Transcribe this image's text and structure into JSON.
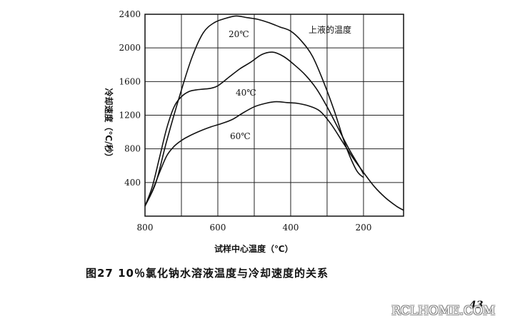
{
  "chart_data": {
    "type": "line",
    "title": "",
    "xlabel": "试样中心温度（℃）",
    "ylabel": "冷却速度（℃/秒）",
    "x_axis_reversed": true,
    "xlim": [
      800,
      90
    ],
    "ylim": [
      0,
      2400
    ],
    "x_ticks": [
      "800",
      "600",
      "400",
      "200"
    ],
    "y_ticks": [
      "400",
      "800",
      "1200",
      "1600",
      "2000",
      "2400"
    ],
    "grid": true,
    "legend": "none",
    "series": [
      {
        "name": "20℃",
        "color": "#111111",
        "x": [
          800,
          770,
          740,
          700,
          670,
          640,
          610,
          580,
          550,
          520,
          490,
          460,
          430,
          400,
          370,
          340,
          310,
          280,
          250,
          220,
          200
        ],
        "y": [
          120,
          400,
          900,
          1500,
          1900,
          2180,
          2300,
          2350,
          2380,
          2360,
          2340,
          2300,
          2250,
          2200,
          2080,
          1900,
          1600,
          1250,
          850,
          550,
          460
        ]
      },
      {
        "name": "40℃",
        "color": "#111111",
        "x": [
          800,
          780,
          760,
          740,
          720,
          700,
          680,
          660,
          640,
          620,
          600,
          570,
          540,
          510,
          480,
          450,
          420,
          390,
          360,
          330,
          300,
          270,
          240,
          210,
          200
        ],
        "y": [
          120,
          350,
          700,
          1050,
          1300,
          1420,
          1480,
          1500,
          1510,
          1520,
          1550,
          1650,
          1750,
          1830,
          1920,
          1950,
          1900,
          1800,
          1680,
          1520,
          1300,
          1050,
          800,
          580,
          500
        ]
      },
      {
        "name": "60℃",
        "color": "#111111",
        "x": [
          800,
          780,
          760,
          740,
          720,
          700,
          680,
          650,
          620,
          590,
          560,
          530,
          500,
          470,
          440,
          410,
          380,
          350,
          320,
          290,
          260,
          230,
          200,
          170,
          140,
          110,
          90
        ],
        "y": [
          120,
          300,
          520,
          720,
          830,
          900,
          950,
          1010,
          1060,
          1100,
          1150,
          1230,
          1300,
          1340,
          1360,
          1350,
          1340,
          1310,
          1250,
          1100,
          900,
          700,
          520,
          350,
          220,
          120,
          70
        ]
      }
    ],
    "annotations": [
      "上液的温度"
    ]
  },
  "caption": "图27   10％氯化钠水溶液温度与冷却速度的关系",
  "page_number": "43",
  "watermark": "RCLHOME.COM"
}
